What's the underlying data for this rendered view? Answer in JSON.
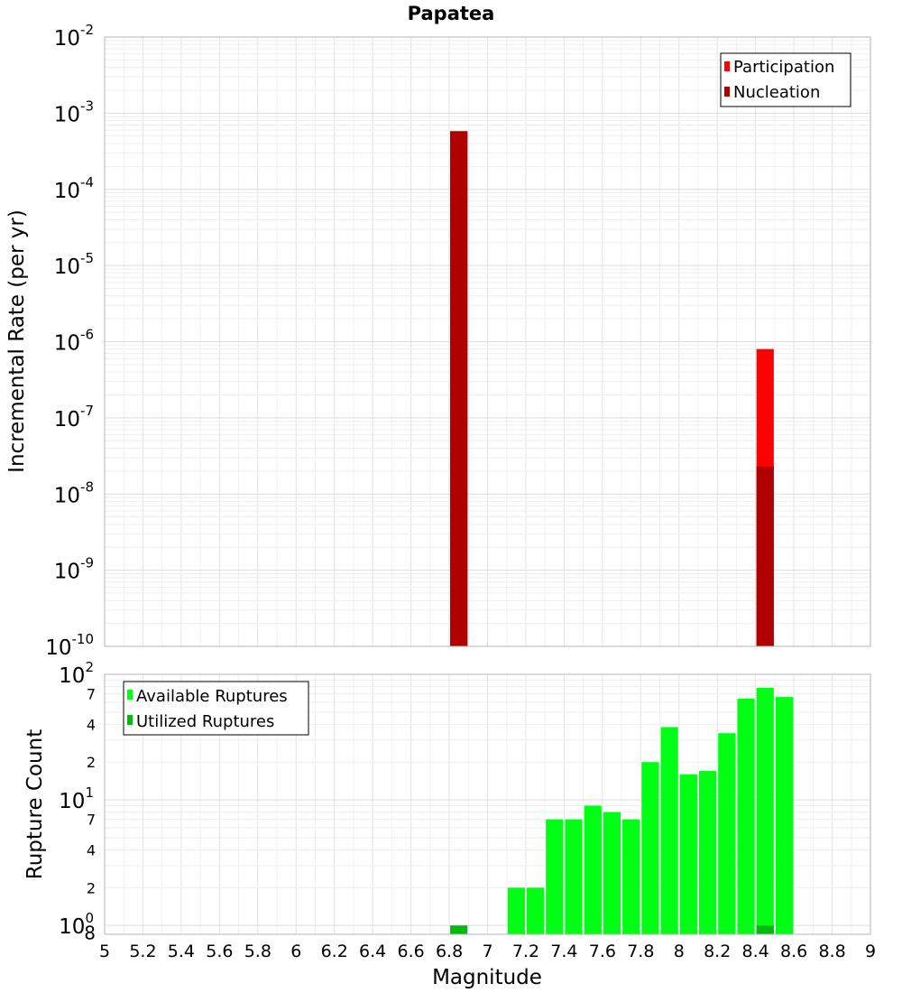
{
  "chart_data": [
    {
      "type": "bar",
      "title": "Papatea",
      "xlabel": "",
      "ylabel": "Incremental Rate (per yr)",
      "y_scale": "log",
      "ylim": [
        1e-10,
        0.01
      ],
      "xlim": [
        5,
        9
      ],
      "y_tick_labels": [
        {
          "base": "10",
          "exp": "-10"
        },
        {
          "base": "10",
          "exp": "-9"
        },
        {
          "base": "10",
          "exp": "-8"
        },
        {
          "base": "10",
          "exp": "-7"
        },
        {
          "base": "10",
          "exp": "-6"
        },
        {
          "base": "10",
          "exp": "-5"
        },
        {
          "base": "10",
          "exp": "-4"
        },
        {
          "base": "10",
          "exp": "-3"
        },
        {
          "base": "10",
          "exp": "-2"
        }
      ],
      "grid": true,
      "legend_position": "top-right",
      "series": [
        {
          "name": "Participation",
          "color": "#ff0000",
          "x": [
            6.85,
            8.45
          ],
          "values": [
            0.00058,
            8e-07
          ]
        },
        {
          "name": "Nucleation",
          "color": "#b00000",
          "x": [
            6.85,
            8.45
          ],
          "values": [
            0.00058,
            2.3e-08
          ]
        }
      ]
    },
    {
      "type": "bar",
      "title": "",
      "xlabel": "Magnitude",
      "ylabel": "Rupture Count",
      "y_scale": "log",
      "ylim": [
        0.85,
        100
      ],
      "xlim": [
        5,
        9
      ],
      "x_ticks": [
        "5",
        "5.2",
        "5.4",
        "5.6",
        "5.8",
        "6",
        "6.2",
        "6.4",
        "6.6",
        "6.8",
        "7",
        "7.2",
        "7.4",
        "7.6",
        "7.8",
        "8",
        "8.2",
        "8.4",
        "8.6",
        "8.8",
        "9"
      ],
      "y_tick_labels": [
        {
          "base": "10",
          "exp": "0"
        },
        {
          "base": "10",
          "exp": "1"
        },
        {
          "base": "10",
          "exp": "2"
        }
      ],
      "y_minor_labels": [
        "8",
        "2",
        "4",
        "7",
        "2",
        "4",
        "7"
      ],
      "grid": true,
      "legend_position": "top-left",
      "series": [
        {
          "name": "Available Ruptures",
          "color": "#00ff14",
          "x": [
            7.15,
            7.25,
            7.35,
            7.45,
            7.55,
            7.65,
            7.75,
            7.85,
            7.95,
            8.05,
            8.15,
            8.25,
            8.35,
            8.45,
            8.55
          ],
          "values": [
            2,
            2,
            7,
            7,
            9,
            8,
            7,
            20,
            38,
            16,
            17,
            34,
            64,
            78,
            66
          ]
        },
        {
          "name": "Utilized Ruptures",
          "color": "#00bb0e",
          "x": [
            6.85,
            8.45
          ],
          "values": [
            1,
            1
          ]
        }
      ]
    }
  ]
}
